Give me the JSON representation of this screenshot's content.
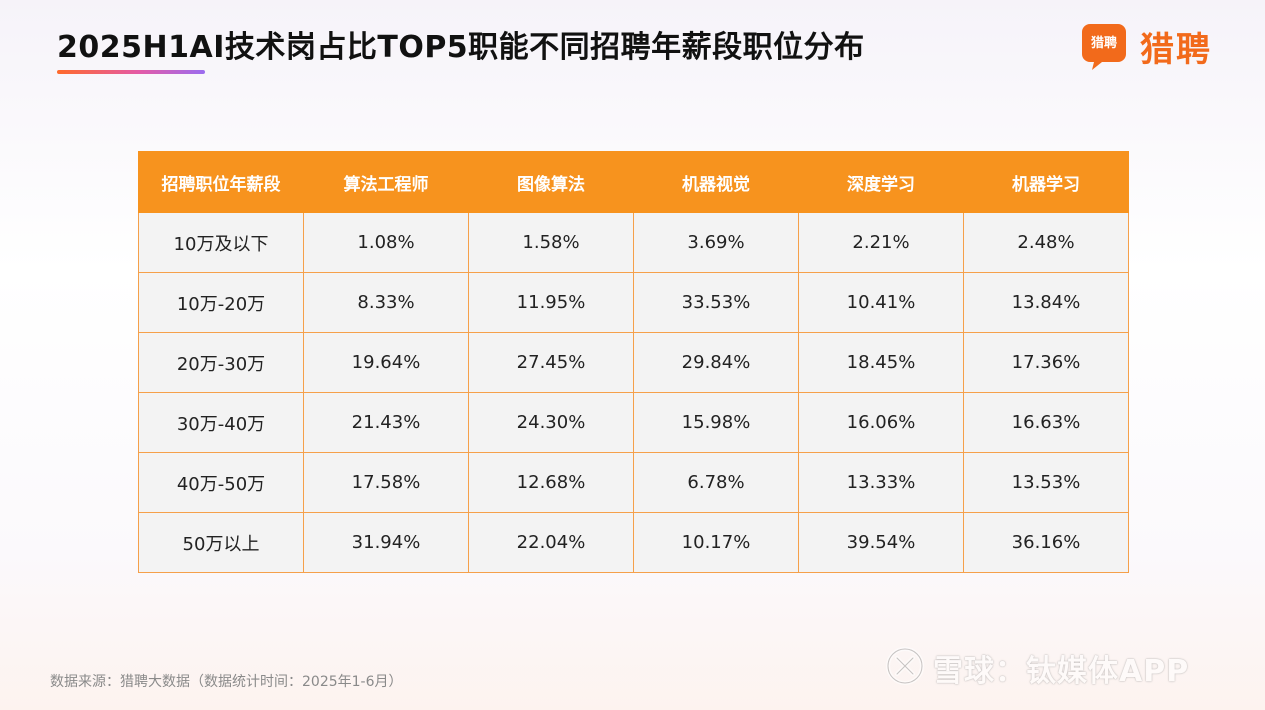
{
  "title": "2025H1AI技术岗占比TOP5职能不同招聘年薪段职位分布",
  "logo": {
    "badge_text": "猎聘",
    "brand_text": "猎聘"
  },
  "colors": {
    "header_bg": "#f7931e",
    "cell_bg": "#f3f3f3",
    "brand_orange": "#f26a1b"
  },
  "table": {
    "headers": [
      "招聘职位年薪段",
      "算法工程师",
      "图像算法",
      "机器视觉",
      "深度学习",
      "机器学习"
    ],
    "rows": [
      [
        "10万及以下",
        "1.08%",
        "1.58%",
        "3.69%",
        "2.21%",
        "2.48%"
      ],
      [
        "10万-20万",
        "8.33%",
        "11.95%",
        "33.53%",
        "10.41%",
        "13.84%"
      ],
      [
        "20万-30万",
        "19.64%",
        "27.45%",
        "29.84%",
        "18.45%",
        "17.36%"
      ],
      [
        "30万-40万",
        "21.43%",
        "24.30%",
        "15.98%",
        "16.06%",
        "16.63%"
      ],
      [
        "40万-50万",
        "17.58%",
        "12.68%",
        "6.78%",
        "13.33%",
        "13.53%"
      ],
      [
        "50万以上",
        "31.94%",
        "22.04%",
        "10.17%",
        "39.54%",
        "36.16%"
      ]
    ]
  },
  "footer": {
    "source": "数据来源：猎聘大数据（数据统计时间：2025年1-6月）"
  },
  "watermark": {
    "text": "雪球：钛媒体APP",
    "icon": "snowball-icon"
  }
}
